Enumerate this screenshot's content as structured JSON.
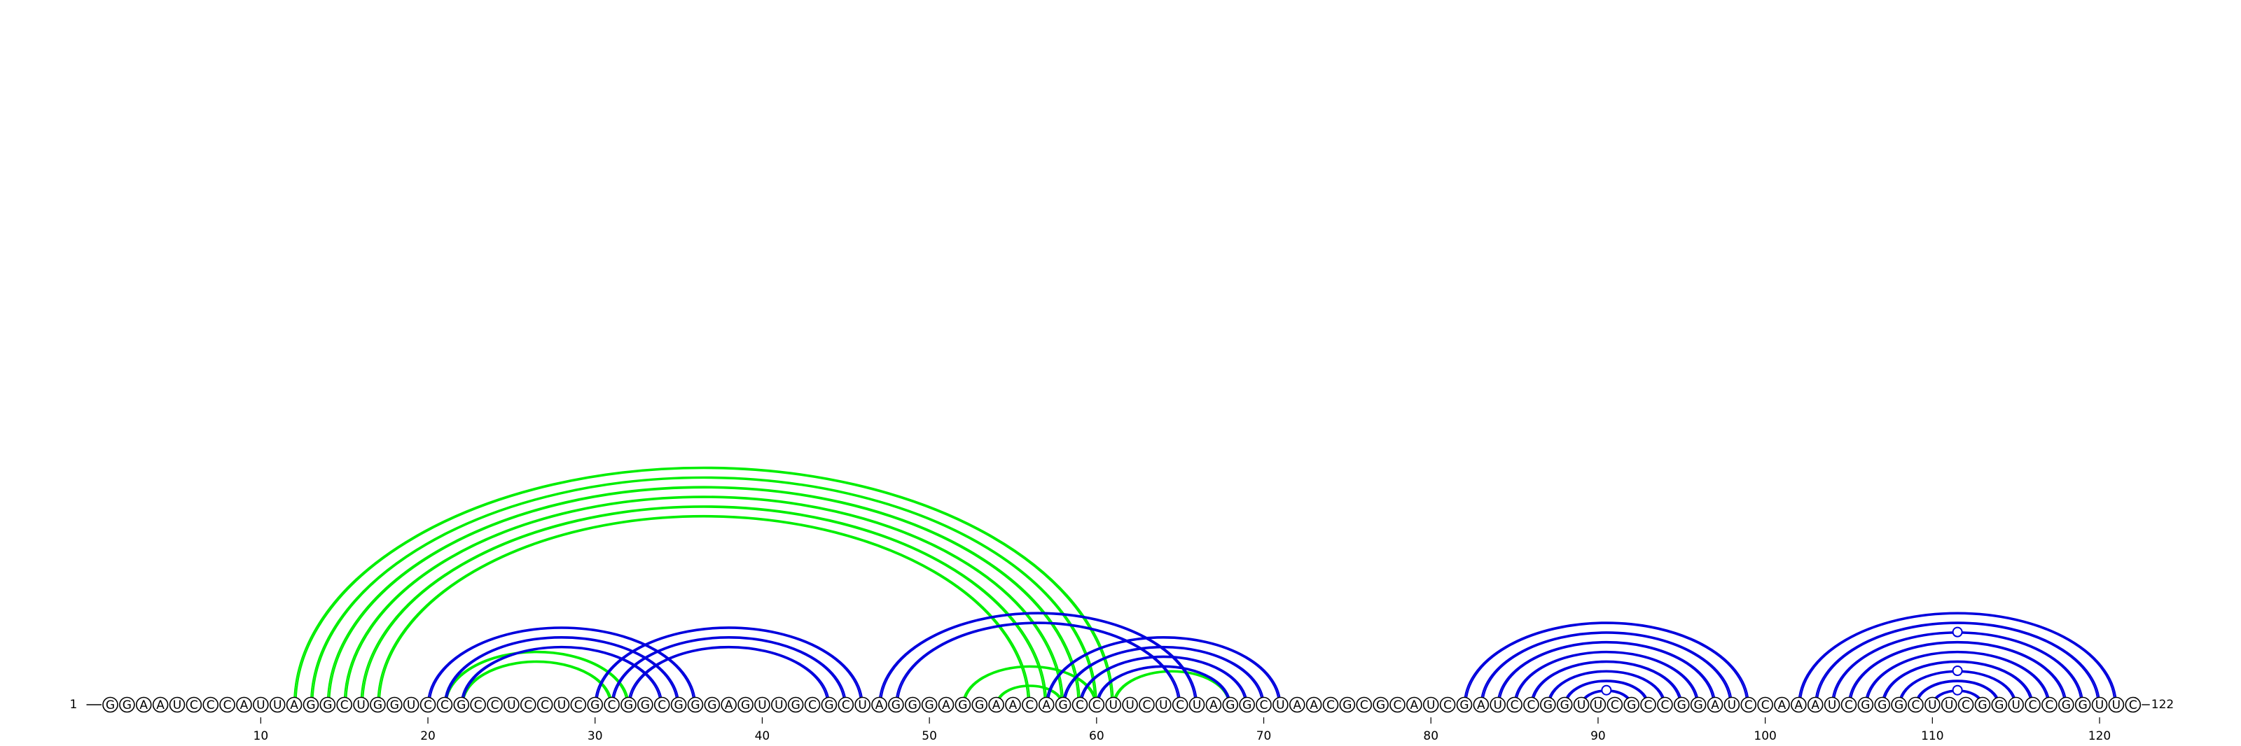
{
  "sequence": "GGAAUCCCAUUAGGCUGGUCCGCCUCCUCGCGGCGGGAGUUGCGCUAGGGAGGAACAGCCUUCUCUAGGCUAACGCGCAUCGAUCCGGUUCGCCGGAUCCAAAUCGGGCUUCGGUCCGGUUC",
  "start_label": "1",
  "end_label": "122",
  "ticks": [
    "10",
    "20",
    "30",
    "40",
    "50",
    "60",
    "70",
    "80",
    "90",
    "100",
    "110",
    "120"
  ],
  "colors": {
    "green": "#00ee00",
    "blue": "#0000dd"
  },
  "chart_data": {
    "type": "arc-diagram",
    "length": 122,
    "tick_positions": [
      10,
      20,
      30,
      40,
      50,
      60,
      70,
      80,
      90,
      100,
      110,
      120
    ],
    "arcs": [
      {
        "i": 12,
        "j": 61,
        "color": "green",
        "w": 2
      },
      {
        "i": 13,
        "j": 60,
        "color": "green",
        "w": 2
      },
      {
        "i": 14,
        "j": 59,
        "color": "green",
        "w": 2
      },
      {
        "i": 15,
        "j": 58,
        "color": "green",
        "w": 2
      },
      {
        "i": 16,
        "j": 57,
        "color": "green",
        "w": 2
      },
      {
        "i": 17,
        "j": 56,
        "color": "green",
        "w": 2
      },
      {
        "i": 21,
        "j": 32,
        "color": "green",
        "w": 2
      },
      {
        "i": 22,
        "j": 31,
        "color": "green",
        "w": 2
      },
      {
        "i": 52,
        "j": 60,
        "color": "green",
        "w": 2
      },
      {
        "i": 54,
        "j": 58,
        "color": "green",
        "w": 2
      },
      {
        "i": 61,
        "j": 68,
        "color": "green",
        "w": 2
      },
      {
        "i": 20,
        "j": 36,
        "color": "blue",
        "w": 2
      },
      {
        "i": 21,
        "j": 35,
        "color": "blue",
        "w": 2
      },
      {
        "i": 22,
        "j": 34,
        "color": "blue",
        "w": 2
      },
      {
        "i": 30,
        "j": 46,
        "color": "blue",
        "w": 2
      },
      {
        "i": 31,
        "j": 45,
        "color": "blue",
        "w": 2
      },
      {
        "i": 32,
        "j": 44,
        "color": "blue",
        "w": 2
      },
      {
        "i": 47,
        "j": 66,
        "color": "blue",
        "w": 2
      },
      {
        "i": 48,
        "j": 65,
        "color": "blue",
        "w": 2
      },
      {
        "i": 57,
        "j": 71,
        "color": "blue",
        "w": 2
      },
      {
        "i": 58,
        "j": 70,
        "color": "blue",
        "w": 2
      },
      {
        "i": 59,
        "j": 69,
        "color": "blue",
        "w": 2
      },
      {
        "i": 60,
        "j": 68,
        "color": "blue",
        "w": 2
      },
      {
        "i": 82,
        "j": 99,
        "color": "blue",
        "w": 2
      },
      {
        "i": 83,
        "j": 98,
        "color": "blue",
        "w": 2
      },
      {
        "i": 84,
        "j": 97,
        "color": "blue",
        "w": 2
      },
      {
        "i": 85,
        "j": 96,
        "color": "blue",
        "w": 2
      },
      {
        "i": 86,
        "j": 95,
        "color": "blue",
        "w": 2
      },
      {
        "i": 87,
        "j": 94,
        "color": "blue",
        "w": 2
      },
      {
        "i": 88,
        "j": 93,
        "color": "blue",
        "w": 2
      },
      {
        "i": 89,
        "j": 92,
        "color": "blue",
        "w": 2
      },
      {
        "i": 102,
        "j": 121,
        "color": "blue",
        "w": 2
      },
      {
        "i": 103,
        "j": 120,
        "color": "blue",
        "w": 2
      },
      {
        "i": 104,
        "j": 119,
        "color": "blue",
        "w": 2
      },
      {
        "i": 105,
        "j": 118,
        "color": "blue",
        "w": 2
      },
      {
        "i": 106,
        "j": 117,
        "color": "blue",
        "w": 2
      },
      {
        "i": 107,
        "j": 116,
        "color": "blue",
        "w": 2
      },
      {
        "i": 108,
        "j": 115,
        "color": "blue",
        "w": 2
      },
      {
        "i": 109,
        "j": 114,
        "color": "blue",
        "w": 2
      },
      {
        "i": 110,
        "j": 113,
        "color": "blue",
        "w": 2
      }
    ],
    "markers": [
      {
        "arc_i": 89,
        "arc_j": 92,
        "color": "blue"
      },
      {
        "arc_i": 110,
        "arc_j": 113,
        "color": "blue"
      },
      {
        "arc_i": 108,
        "arc_j": 115,
        "color": "blue"
      },
      {
        "arc_i": 104,
        "arc_j": 119,
        "color": "blue"
      }
    ]
  }
}
